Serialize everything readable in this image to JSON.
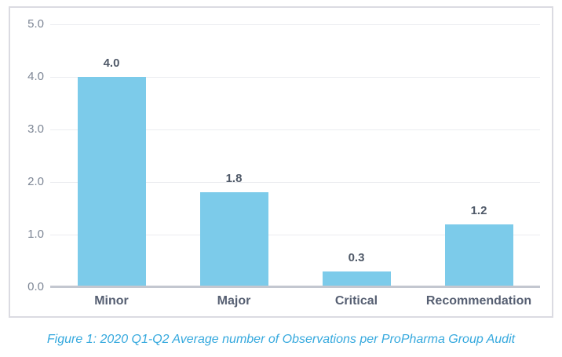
{
  "figure": {
    "caption": "Figure 1: 2020 Q1-Q2 Average number of Observations per ProPharma Group Audit"
  },
  "chart_data": {
    "type": "bar",
    "categories": [
      "Minor",
      "Major",
      "Critical",
      "Recommendation"
    ],
    "values": [
      4.0,
      1.8,
      0.3,
      1.2
    ],
    "value_labels": [
      "4.0",
      "1.8",
      "0.3",
      "1.2"
    ],
    "y_ticks": [
      "5.0",
      "4.0",
      "3.0",
      "2.0",
      "1.0",
      "0.0"
    ],
    "ylim": [
      0,
      5
    ],
    "title": "",
    "xlabel": "",
    "ylabel": "",
    "grid": true,
    "legend": false,
    "colors": {
      "bar": "#7ccbea",
      "value_label": "#4f5968",
      "category_label": "#565f72",
      "tick_label": "#7d8695",
      "gridline": "#ebecf0",
      "baseline": "#c3c7d0",
      "panel_border": "#dbdbe2",
      "caption": "#36a9de"
    }
  }
}
